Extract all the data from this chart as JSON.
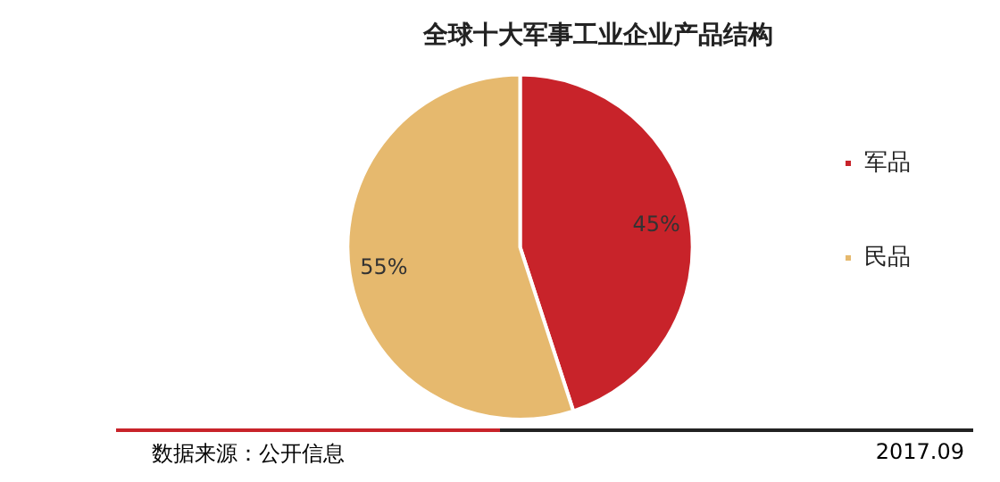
{
  "chart_data": {
    "type": "pie",
    "title": "全球十大军事工业企业产品结构",
    "categories": [
      "军品",
      "民品"
    ],
    "values": [
      45,
      55
    ],
    "colors": [
      "#c8232a",
      "#e6b96e"
    ],
    "value_labels": [
      "45%",
      "55%"
    ],
    "legend": "right",
    "annotations": [
      "数据来源：公开信息",
      "2017.09"
    ]
  }
}
